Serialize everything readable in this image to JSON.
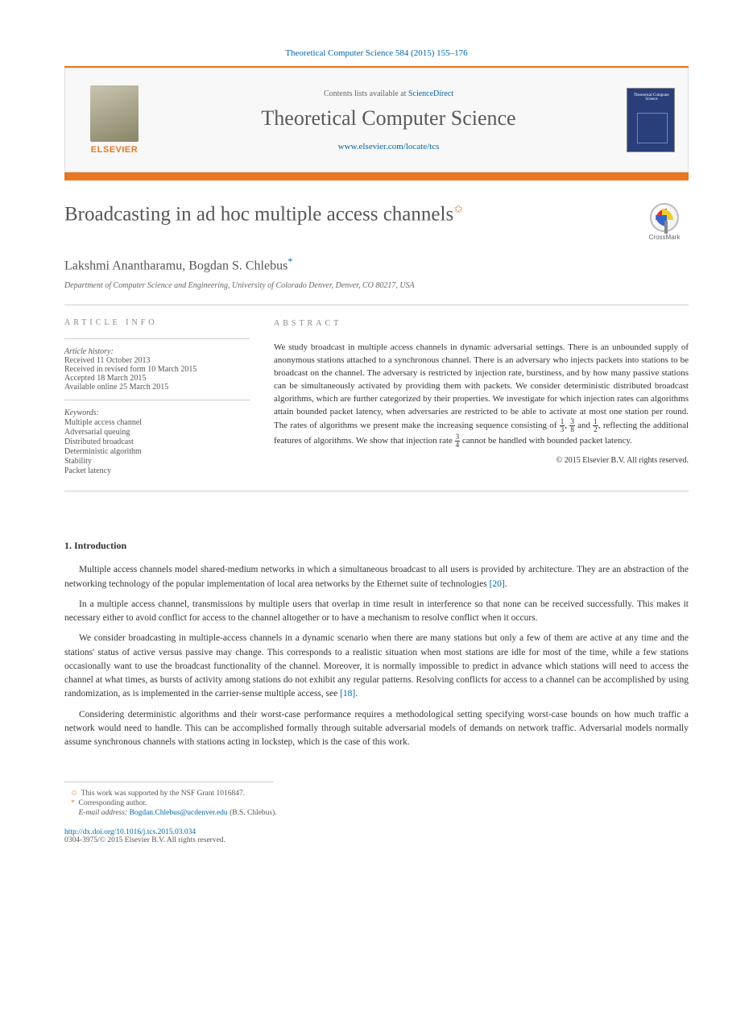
{
  "citation": {
    "text": "Theoretical Computer Science 584 (2015) 155–176",
    "href": "#"
  },
  "header": {
    "contents_prefix": "Contents lists available at ",
    "contents_link": "ScienceDirect",
    "journal": "Theoretical Computer Science",
    "locate_url": "www.elsevier.com/locate/tcs",
    "publisher_logo": "ELSEVIER",
    "cover_label": "Theoretical Computer Science"
  },
  "article": {
    "title": "Broadcasting in ad hoc multiple access channels",
    "title_mark": "✩",
    "crossmark": "CrossMark",
    "authors": "Lakshmi Anantharamu, Bogdan S. Chlebus",
    "corr_mark": "*",
    "affiliation": "Department of Computer Science and Engineering, University of Colorado Denver, Denver, CO 80217, USA"
  },
  "info": {
    "heading": "ARTICLE INFO",
    "history_label": "Article history:",
    "received": "Received 11 October 2013",
    "revised": "Received in revised form 10 March 2015",
    "accepted": "Accepted 18 March 2015",
    "online": "Available online 25 March 2015",
    "keywords_label": "Keywords:",
    "keywords": [
      "Multiple access channel",
      "Adversarial queuing",
      "Distributed broadcast",
      "Deterministic algorithm",
      "Stability",
      "Packet latency"
    ]
  },
  "abstract": {
    "heading": "ABSTRACT",
    "text_1": "We study broadcast in multiple access channels in dynamic adversarial settings. There is an unbounded supply of anonymous stations attached to a synchronous channel. There is an adversary who injects packets into stations to be broadcast on the channel. The adversary is restricted by injection rate, burstiness, and by how many passive stations can be simultaneously activated by providing them with packets. We consider deterministic distributed broadcast algorithms, which are further categorized by their properties. We investigate for which injection rates can algorithms attain bounded packet latency, when adversaries are restricted to be able to activate at most one station per round. The rates of algorithms we present make the increasing sequence consisting of ",
    "frac1": {
      "n": "1",
      "d": "3"
    },
    "text_2": ", ",
    "frac2": {
      "n": "3",
      "d": "8"
    },
    "text_3": " and ",
    "frac3": {
      "n": "1",
      "d": "2"
    },
    "text_4": ", reflecting the additional features of algorithms. We show that injection rate ",
    "frac4": {
      "n": "3",
      "d": "4"
    },
    "text_5": " cannot be handled with bounded packet latency.",
    "copyright": "© 2015 Elsevier B.V. All rights reserved."
  },
  "sections": {
    "intro_heading": "1. Introduction",
    "p1a": "Multiple access channels model shared-medium networks in which a simultaneous broadcast to all users is provided by architecture. They are an abstraction of the networking technology of the popular implementation of local area networks by the Ethernet suite of technologies ",
    "p1_ref": "[20]",
    "p1b": ".",
    "p2": "In a multiple access channel, transmissions by multiple users that overlap in time result in interference so that none can be received successfully. This makes it necessary either to avoid conflict for access to the channel altogether or to have a mechanism to resolve conflict when it occurs.",
    "p3a": "We consider broadcasting in multiple-access channels in a dynamic scenario when there are many stations but only a few of them are active at any time and the stations' status of active versus passive may change. This corresponds to a realistic situation when most stations are idle for most of the time, while a few stations occasionally want to use the broadcast functionality of the channel. Moreover, it is normally impossible to predict in advance which stations will need to access the channel at what times, as bursts of activity among stations do not exhibit any regular patterns. Resolving conflicts for access to a channel can be accomplished by using randomization, as is implemented in the carrier-sense multiple access, see ",
    "p3_ref": "[18]",
    "p3b": ".",
    "p4": "Considering deterministic algorithms and their worst-case performance requires a methodological setting specifying worst-case bounds on how much traffic a network would need to handle. This can be accomplished formally through suitable adversarial models of demands on network traffic. Adversarial models normally assume synchronous channels with stations acting in lockstep, which is the case of this work."
  },
  "footnotes": {
    "fn1_sym": "✩",
    "fn1": "This work was supported by the NSF Grant 1016847.",
    "fn2_sym": "*",
    "fn2": "Corresponding author.",
    "fn3_label": "E-mail address:",
    "fn3_email": "Bogdan.Chlebus@ucdenver.edu",
    "fn3_tail": " (B.S. Chlebus)."
  },
  "footer": {
    "doi": "http://dx.doi.org/10.1016/j.tcs.2015.03.034",
    "rights": "0304-3975/© 2015 Elsevier B.V. All rights reserved."
  },
  "colors": {
    "orange": "#e87722",
    "link": "#0066aa",
    "grey_text": "#555555",
    "rule": "#cccccc"
  }
}
